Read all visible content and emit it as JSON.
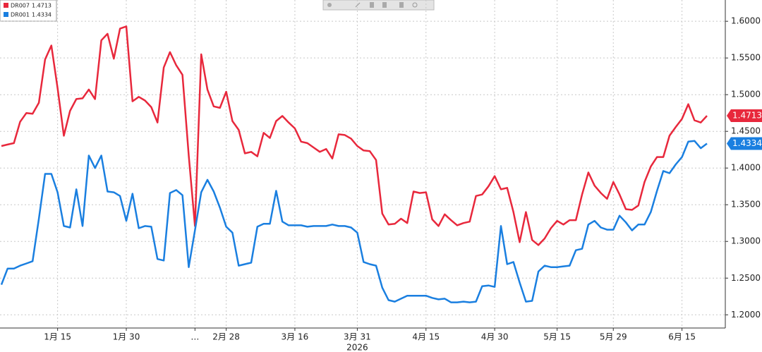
{
  "chart_data": {
    "type": "line",
    "categories": [
      null,
      null,
      null,
      null,
      null,
      null,
      null,
      null,
      null,
      "1月 15",
      null,
      null,
      null,
      null,
      null,
      null,
      null,
      null,
      null,
      null,
      "1月 30",
      null,
      null,
      null,
      null,
      null,
      null,
      null,
      null,
      null,
      null,
      "…",
      null,
      null,
      null,
      null,
      "2月 28",
      null,
      null,
      null,
      null,
      null,
      null,
      null,
      null,
      null,
      null,
      "3月 16",
      null,
      null,
      null,
      null,
      null,
      null,
      null,
      null,
      null,
      "3月 31",
      null,
      null,
      null,
      null,
      null,
      null,
      null,
      null,
      null,
      null,
      "4月 15",
      null,
      null,
      null,
      null,
      null,
      null,
      null,
      null,
      null,
      null,
      "4月 30",
      null,
      null,
      null,
      null,
      null,
      null,
      null,
      null,
      null,
      "5月 15",
      null,
      null,
      null,
      null,
      null,
      null,
      null,
      null,
      "5月 29",
      null,
      null,
      null,
      null,
      null,
      null,
      null,
      null,
      null,
      null,
      "6月 15",
      null,
      null,
      null,
      null
    ],
    "year_label": "2026",
    "series": [
      {
        "name": "DR007",
        "color": "#e8283c",
        "values": [
          1.43,
          1.432,
          1.434,
          1.463,
          1.475,
          1.474,
          1.489,
          1.548,
          1.567,
          1.509,
          1.444,
          1.478,
          1.494,
          1.495,
          1.507,
          1.494,
          1.574,
          1.583,
          1.549,
          1.59,
          1.593,
          1.491,
          1.497,
          1.492,
          1.483,
          1.462,
          1.537,
          1.558,
          1.54,
          1.527,
          1.417,
          1.321,
          1.555,
          1.507,
          1.484,
          1.482,
          1.504,
          1.464,
          1.452,
          1.42,
          1.422,
          1.416,
          1.448,
          1.441,
          1.464,
          1.471,
          1.462,
          1.454,
          1.436,
          1.434,
          1.428,
          1.422,
          1.426,
          1.413,
          1.446,
          1.445,
          1.44,
          1.43,
          1.424,
          1.423,
          1.411,
          1.338,
          1.323,
          1.324,
          1.331,
          1.325,
          1.368,
          1.366,
          1.367,
          1.33,
          1.321,
          1.337,
          1.329,
          1.322,
          1.325,
          1.327,
          1.362,
          1.364,
          1.375,
          1.389,
          1.371,
          1.373,
          1.34,
          1.299,
          1.34,
          1.302,
          1.295,
          1.304,
          1.318,
          1.328,
          1.323,
          1.329,
          1.329,
          1.364,
          1.394,
          1.376,
          1.366,
          1.358,
          1.381,
          1.364,
          1.344,
          1.343,
          1.349,
          1.381,
          1.402,
          1.415,
          1.415,
          1.444,
          1.456,
          1.467,
          1.487,
          1.465,
          1.462,
          1.4713
        ]
      },
      {
        "name": "DR001",
        "color": "#1a7fe0",
        "values": [
          1.241,
          1.263,
          1.263,
          1.267,
          1.27,
          1.273,
          1.331,
          1.392,
          1.392,
          1.367,
          1.321,
          1.319,
          1.371,
          1.321,
          1.417,
          1.4,
          1.417,
          1.368,
          1.367,
          1.362,
          1.328,
          1.365,
          1.318,
          1.321,
          1.32,
          1.276,
          1.274,
          1.366,
          1.37,
          1.363,
          1.265,
          1.315,
          1.367,
          1.384,
          1.368,
          1.346,
          1.32,
          1.312,
          1.267,
          1.269,
          1.271,
          1.32,
          1.324,
          1.324,
          1.369,
          1.327,
          1.322,
          1.322,
          1.322,
          1.32,
          1.321,
          1.321,
          1.321,
          1.323,
          1.321,
          1.321,
          1.319,
          1.312,
          1.272,
          1.269,
          1.267,
          1.237,
          1.22,
          1.218,
          1.222,
          1.226,
          1.226,
          1.226,
          1.226,
          1.223,
          1.221,
          1.222,
          1.217,
          1.217,
          1.218,
          1.217,
          1.218,
          1.239,
          1.24,
          1.238,
          1.321,
          1.269,
          1.272,
          1.244,
          1.218,
          1.219,
          1.259,
          1.267,
          1.265,
          1.265,
          1.266,
          1.267,
          1.288,
          1.29,
          1.323,
          1.328,
          1.319,
          1.316,
          1.316,
          1.335,
          1.326,
          1.315,
          1.323,
          1.323,
          1.34,
          1.369,
          1.396,
          1.393,
          1.405,
          1.415,
          1.436,
          1.437,
          1.427,
          1.4334
        ]
      }
    ],
    "ylim": [
      1.182,
      1.629
    ],
    "yticks": [
      {
        "value": 1.2,
        "label": "1.2000"
      },
      {
        "value": 1.25,
        "label": "1.2500"
      },
      {
        "value": 1.3,
        "label": "1.3000"
      },
      {
        "value": 1.35,
        "label": "1.3500"
      },
      {
        "value": 1.4,
        "label": "1.4000"
      },
      {
        "value": 1.45,
        "label": "1.4500"
      },
      {
        "value": 1.5,
        "label": "1.5000"
      },
      {
        "value": 1.55,
        "label": "1.5500"
      },
      {
        "value": 1.6,
        "label": "1.6000"
      }
    ],
    "grid": true
  }
}
